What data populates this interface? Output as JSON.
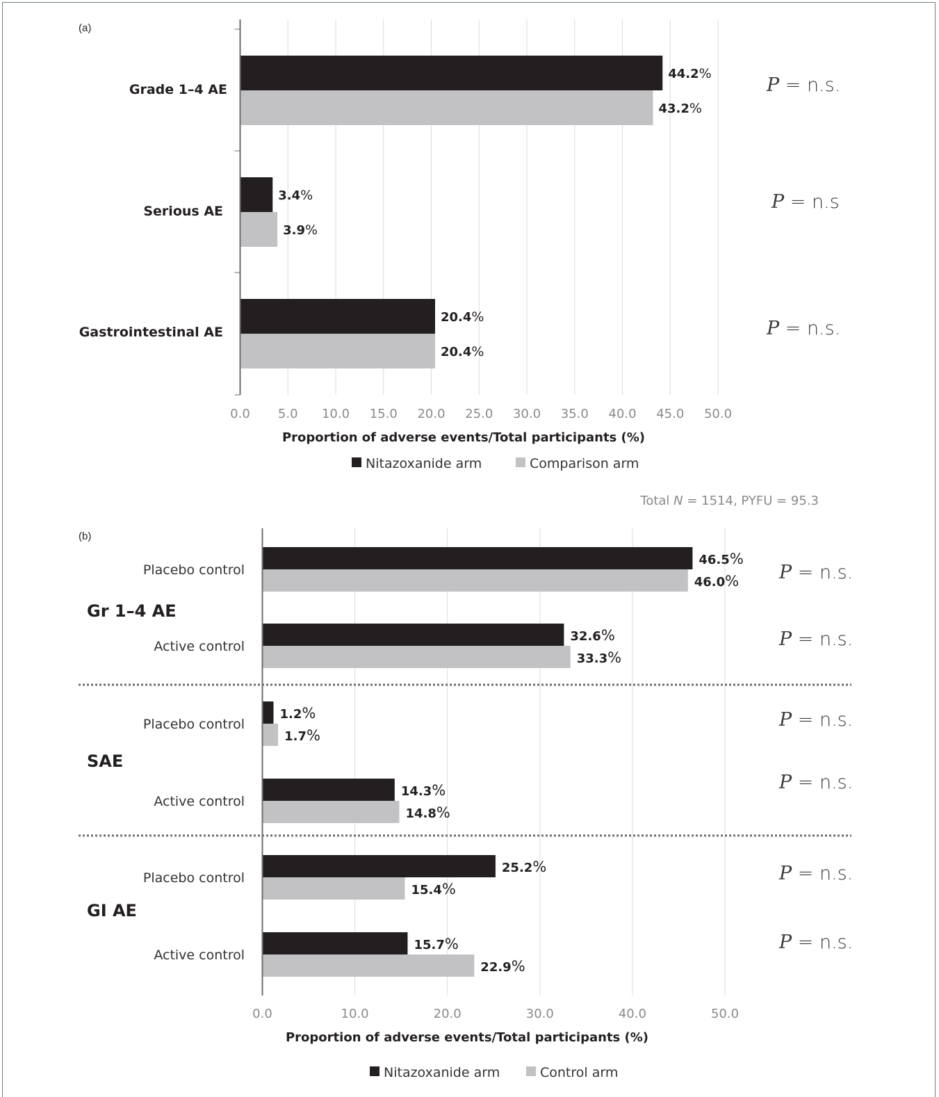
{
  "colors": {
    "nitazoxanide": "#231f20",
    "comparison": "#c2c2c4",
    "grid": "#dcdcdc",
    "axis": "#6d6d6d",
    "frame": "#6f7d86"
  },
  "chart_data": [
    {
      "panel": "(a)",
      "type": "bar",
      "orientation": "horizontal",
      "categories": [
        "Grade 1–4 AE",
        "Serious AE",
        "Gastrointestinal AE"
      ],
      "series": [
        {
          "name": "Nitazoxanide arm",
          "values": [
            44.2,
            3.4,
            20.4
          ],
          "labels": [
            "44.2",
            "3.4",
            "20.4"
          ]
        },
        {
          "name": "Comparison arm",
          "values": [
            43.2,
            3.9,
            20.4
          ],
          "labels": [
            "43.2",
            "3.9",
            "20.4"
          ]
        }
      ],
      "p_values": [
        {
          "p": "P",
          "text": "= n.s."
        },
        {
          "p": "P",
          "text": "= n.s"
        },
        {
          "p": "P",
          "text": "= n.s."
        }
      ],
      "xlim": [
        0,
        50
      ],
      "ticks": [
        "0.0",
        "5.0",
        "10.0",
        "15.0",
        "20.0",
        "25.0",
        "30.0",
        "35.0",
        "40.0",
        "45.0",
        "50.0"
      ],
      "xlabel": "Proportion of adverse events/Total participants (%)",
      "legend": [
        "Nitazoxanide arm",
        "Comparison arm"
      ],
      "legend_position": "bottom",
      "grid": true,
      "footnote": {
        "prefix": "Total ",
        "n_symbol": "N",
        "rest": " = 1514,  PYFU = 95.3"
      }
    },
    {
      "panel": "(b)",
      "type": "bar",
      "orientation": "horizontal",
      "groups": [
        {
          "name": "Gr 1–4 AE",
          "rows": [
            "Placebo control",
            "Active control"
          ]
        },
        {
          "name": "SAE",
          "rows": [
            "Placebo control",
            "Active control"
          ]
        },
        {
          "name": "GI AE",
          "rows": [
            "Placebo control",
            "Active control"
          ]
        }
      ],
      "series": [
        {
          "name": "Nitazoxanide arm",
          "values": [
            46.5,
            32.6,
            1.2,
            14.3,
            25.2,
            15.7
          ],
          "labels": [
            "46.5",
            "32.6",
            "1.2",
            "14.3",
            "25.2",
            "15.7"
          ]
        },
        {
          "name": "Control arm",
          "values": [
            46.0,
            33.3,
            1.7,
            14.8,
            15.4,
            22.9
          ],
          "labels": [
            "46.0",
            "33.3",
            "1.7",
            "14.8",
            "15.4",
            "22.9"
          ]
        }
      ],
      "p_values": [
        {
          "p": "P",
          "text": "= n.s."
        },
        {
          "p": "P",
          "text": "= n.s."
        },
        {
          "p": "P",
          "text": "= n.s."
        },
        {
          "p": "P",
          "text": "= n.s."
        },
        {
          "p": "P",
          "text": "= n.s."
        },
        {
          "p": "P",
          "text": "= n.s."
        }
      ],
      "xlim": [
        0,
        50
      ],
      "ticks": [
        "0.0",
        "10.0",
        "20.0",
        "30.0",
        "40.0",
        "50.0"
      ],
      "xlabel": "Proportion of adverse events/Total participants (%)",
      "legend": [
        "Nitazoxanide arm",
        "Control arm"
      ],
      "legend_position": "bottom",
      "grid": true
    }
  ]
}
